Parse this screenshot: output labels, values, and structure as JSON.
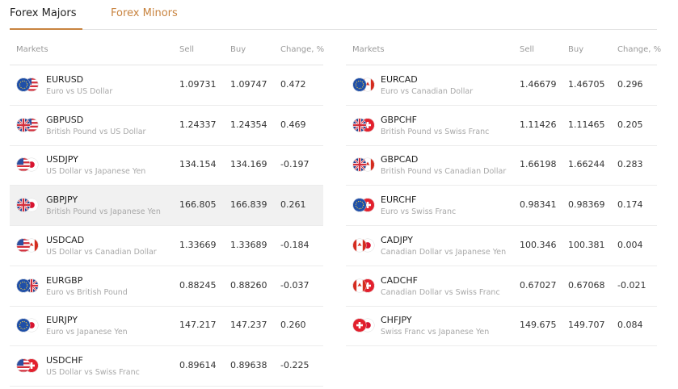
{
  "tabs": [
    {
      "label": "Forex Majors",
      "active": true
    },
    {
      "label": "Forex Minors",
      "active": false
    }
  ],
  "tables": [
    {
      "columns": [
        "Markets",
        "Sell",
        "Buy",
        "Change, %"
      ],
      "rows": [
        {
          "symbol": "EURUSD",
          "description": "Euro vs US Dollar",
          "sell": "1.09731",
          "buy": "1.09747",
          "change": "0.472"
        },
        {
          "symbol": "GBPUSD",
          "description": "British Pound vs US Dollar",
          "sell": "1.24337",
          "buy": "1.24354",
          "change": "0.469"
        },
        {
          "symbol": "USDJPY",
          "description": "US Dollar vs Japanese Yen",
          "sell": "134.154",
          "buy": "134.169",
          "change": "-0.197"
        },
        {
          "symbol": "GBPJPY",
          "description": "British Pound vs Japanese Yen",
          "sell": "166.805",
          "buy": "166.839",
          "change": "0.261",
          "highlighted": true
        },
        {
          "symbol": "USDCAD",
          "description": "US Dollar vs Canadian Dollar",
          "sell": "1.33669",
          "buy": "1.33689",
          "change": "-0.184"
        },
        {
          "symbol": "EURGBP",
          "description": "Euro vs British Pound",
          "sell": "0.88245",
          "buy": "0.88260",
          "change": "-0.037"
        },
        {
          "symbol": "EURJPY",
          "description": "Euro vs Japanese Yen",
          "sell": "147.217",
          "buy": "147.237",
          "change": "0.260"
        },
        {
          "symbol": "USDCHF",
          "description": "US Dollar vs Swiss Franc",
          "sell": "0.89614",
          "buy": "0.89638",
          "change": "-0.225"
        }
      ]
    },
    {
      "columns": [
        "Markets",
        "Sell",
        "Buy",
        "Change, %"
      ],
      "rows": [
        {
          "symbol": "EURCAD",
          "description": "Euro vs Canadian Dollar",
          "sell": "1.46679",
          "buy": "1.46705",
          "change": "0.296"
        },
        {
          "symbol": "GBPCHF",
          "description": "British Pound vs Swiss Franc",
          "sell": "1.11426",
          "buy": "1.11465",
          "change": "0.205"
        },
        {
          "symbol": "GBPCAD",
          "description": "British Pound vs Canadian Dollar",
          "sell": "1.66198",
          "buy": "1.66244",
          "change": "0.283"
        },
        {
          "symbol": "EURCHF",
          "description": "Euro vs Swiss Franc",
          "sell": "0.98341",
          "buy": "0.98369",
          "change": "0.174"
        },
        {
          "symbol": "CADJPY",
          "description": "Canadian Dollar vs Japanese Yen",
          "sell": "100.346",
          "buy": "100.381",
          "change": "0.004"
        },
        {
          "symbol": "CADCHF",
          "description": "Canadian Dollar vs Swiss Franc",
          "sell": "0.67027",
          "buy": "0.67068",
          "change": "-0.021"
        },
        {
          "symbol": "CHFJPY",
          "description": "Swiss Franc vs Japanese Yen",
          "sell": "149.675",
          "buy": "149.707",
          "change": "0.084"
        }
      ]
    }
  ]
}
